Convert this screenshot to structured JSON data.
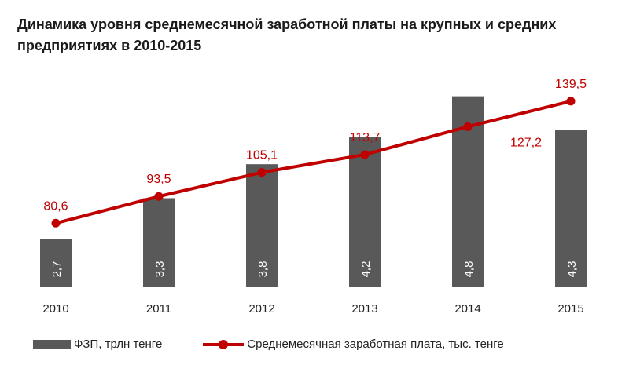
{
  "chart_data": {
    "type": "bar+line",
    "title": "Динамика уровня среднемесячной заработной платы на крупных и средних предприятиях в 2010-2015",
    "categories": [
      "2010",
      "2011",
      "2012",
      "2013",
      "2014",
      "2015"
    ],
    "series": [
      {
        "name": "ФЗП, трлн тенге",
        "type": "bar",
        "axis": "primary",
        "values": [
          2.7,
          3.3,
          3.8,
          4.2,
          4.8,
          4.3
        ],
        "labels": [
          "2,7",
          "3,3",
          "3,8",
          "4,2",
          "4,8",
          "4,3"
        ],
        "color": "#595959"
      },
      {
        "name": "Среднемесячная заработная плата, тыс. тенге",
        "type": "line",
        "axis": "secondary",
        "values": [
          80.6,
          93.5,
          105.1,
          113.7,
          127.2,
          139.5
        ],
        "labels": [
          "80,6",
          "93,5",
          "105,1",
          "113,7",
          "127,2",
          "139,5"
        ],
        "color": "#c00000"
      }
    ],
    "primary_ylim": [
      2,
      5.2
    ],
    "secondary_ylim": [
      50,
      155
    ],
    "axes_visible": false,
    "grid": false,
    "legend": "bottom"
  }
}
